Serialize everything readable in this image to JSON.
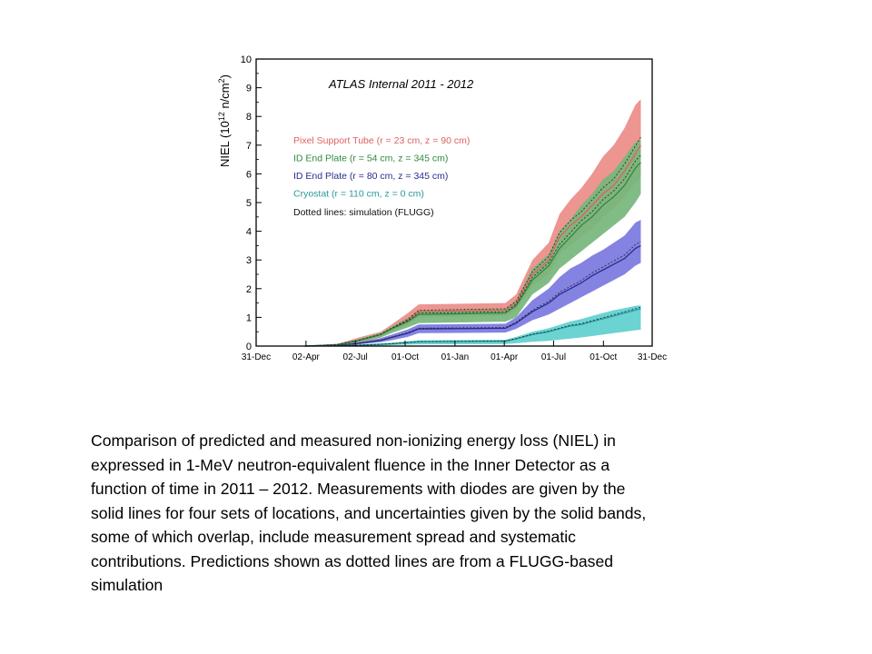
{
  "caption_lines": [
    "Comparison of predicted and measured non-ionizing energy loss (NIEL) in",
    "expressed in 1-MeV neutron-equivalent fluence in the Inner Detector as a",
    "function of time in 2011 – 2012. Measurements with diodes are given by the",
    "solid lines for four sets of locations, and uncertainties given by the solid bands,",
    "some of which overlap, include measurement spread and systematic",
    "contributions. Predictions shown as dotted lines are from a FLUGG-based",
    "simulation"
  ],
  "chart_data": {
    "type": "area",
    "title": "ATLAS Internal 2011 - 2012",
    "ylabel": "NIEL (10 12 n/cm2)",
    "xlabel": "",
    "categories": [
      "31-Dec",
      "02-Apr",
      "02-Jul",
      "01-Oct",
      "01-Jan",
      "01-Apr",
      "01-Jul",
      "01-Oct",
      "31-Dec"
    ],
    "category_pos": [
      0,
      92,
      183,
      275,
      367,
      458,
      549,
      641,
      731
    ],
    "xlim": [
      0,
      731
    ],
    "ylim": [
      0,
      10
    ],
    "yticks": [
      0,
      1,
      2,
      3,
      4,
      5,
      6,
      7,
      8,
      9,
      10
    ],
    "grid": false,
    "legend_placement": "top-left",
    "annotation": "Dotted lines: simulation (FLUGG)",
    "series": [
      {
        "name": "Pixel Support Tube (r = 23 cm, z = 90 cm)",
        "color": "#e06060",
        "band_color": "#ec8c88",
        "x": [
          90,
          150,
          190,
          230,
          250,
          280,
          300,
          460,
          480,
          510,
          540,
          560,
          580,
          600,
          620,
          640,
          660,
          680,
          700,
          710
        ],
        "values": [
          0,
          0.05,
          0.2,
          0.4,
          0.6,
          0.9,
          1.2,
          1.25,
          1.5,
          2.5,
          3.0,
          3.8,
          4.2,
          4.5,
          4.9,
          5.3,
          5.6,
          6.1,
          6.7,
          7.0
        ],
        "upper": [
          0,
          0.08,
          0.3,
          0.5,
          0.75,
          1.15,
          1.45,
          1.5,
          1.8,
          3.0,
          3.6,
          4.6,
          5.1,
          5.5,
          6.0,
          6.6,
          7.0,
          7.6,
          8.4,
          8.6
        ],
        "lower": [
          0,
          0.02,
          0.15,
          0.3,
          0.5,
          0.75,
          1.0,
          1.05,
          1.25,
          2.1,
          2.5,
          3.2,
          3.5,
          3.8,
          4.1,
          4.5,
          4.8,
          5.2,
          5.7,
          5.9
        ]
      },
      {
        "name": "ID End Plate (r = 54 cm, z = 345 cm)",
        "color": "#2e8b3e",
        "band_color": "#76b67c",
        "x": [
          90,
          150,
          190,
          230,
          250,
          280,
          300,
          460,
          480,
          510,
          540,
          560,
          580,
          600,
          620,
          640,
          660,
          680,
          700,
          710
        ],
        "values": [
          0,
          0.05,
          0.2,
          0.4,
          0.6,
          0.85,
          1.1,
          1.15,
          1.4,
          2.3,
          2.8,
          3.4,
          3.8,
          4.2,
          4.5,
          4.9,
          5.2,
          5.6,
          6.2,
          6.4
        ],
        "upper": [
          0,
          0.06,
          0.25,
          0.45,
          0.68,
          0.98,
          1.25,
          1.3,
          1.6,
          2.7,
          3.2,
          4.0,
          4.4,
          4.9,
          5.3,
          5.8,
          6.1,
          6.6,
          7.1,
          7.2
        ],
        "lower": [
          0,
          0.02,
          0.12,
          0.3,
          0.45,
          0.65,
          0.8,
          0.85,
          1.0,
          1.8,
          2.2,
          2.7,
          3.0,
          3.3,
          3.6,
          3.9,
          4.2,
          4.5,
          5.0,
          5.3
        ]
      },
      {
        "name": "ID End Plate (r = 80 cm, z = 345 cm)",
        "color": "#2b2b90",
        "band_color": "#7a78e0",
        "x": [
          90,
          150,
          190,
          230,
          250,
          280,
          300,
          460,
          480,
          510,
          540,
          560,
          580,
          600,
          620,
          640,
          660,
          680,
          700,
          710
        ],
        "values": [
          0,
          0.02,
          0.1,
          0.2,
          0.3,
          0.45,
          0.6,
          0.62,
          0.8,
          1.2,
          1.5,
          1.8,
          2.0,
          2.2,
          2.45,
          2.65,
          2.85,
          3.05,
          3.4,
          3.5
        ],
        "upper": [
          0,
          0.04,
          0.14,
          0.28,
          0.4,
          0.58,
          0.75,
          0.78,
          1.0,
          1.6,
          2.0,
          2.4,
          2.7,
          2.9,
          3.15,
          3.35,
          3.6,
          3.85,
          4.3,
          4.4
        ],
        "lower": [
          0,
          0.01,
          0.06,
          0.14,
          0.2,
          0.32,
          0.45,
          0.47,
          0.6,
          0.9,
          1.1,
          1.3,
          1.5,
          1.7,
          1.9,
          2.1,
          2.3,
          2.5,
          2.8,
          2.9
        ]
      },
      {
        "name": "Cryostat (r = 110 cm, z = 0 cm)",
        "color": "#2a9a9a",
        "band_color": "#5fcfcf",
        "x": [
          90,
          150,
          190,
          230,
          250,
          280,
          300,
          460,
          480,
          510,
          540,
          560,
          580,
          600,
          620,
          640,
          660,
          680,
          700,
          710
        ],
        "values": [
          0,
          0.01,
          0.03,
          0.06,
          0.08,
          0.12,
          0.15,
          0.17,
          0.25,
          0.4,
          0.5,
          0.6,
          0.7,
          0.75,
          0.85,
          0.95,
          1.05,
          1.15,
          1.25,
          1.3
        ],
        "upper": [
          0,
          0.02,
          0.05,
          0.1,
          0.12,
          0.17,
          0.2,
          0.22,
          0.32,
          0.5,
          0.62,
          0.74,
          0.86,
          0.94,
          1.05,
          1.15,
          1.25,
          1.32,
          1.4,
          1.42
        ],
        "lower": [
          0,
          0,
          0.01,
          0.02,
          0.03,
          0.05,
          0.06,
          0.07,
          0.1,
          0.15,
          0.18,
          0.22,
          0.26,
          0.3,
          0.35,
          0.4,
          0.45,
          0.5,
          0.55,
          0.57
        ]
      }
    ]
  }
}
